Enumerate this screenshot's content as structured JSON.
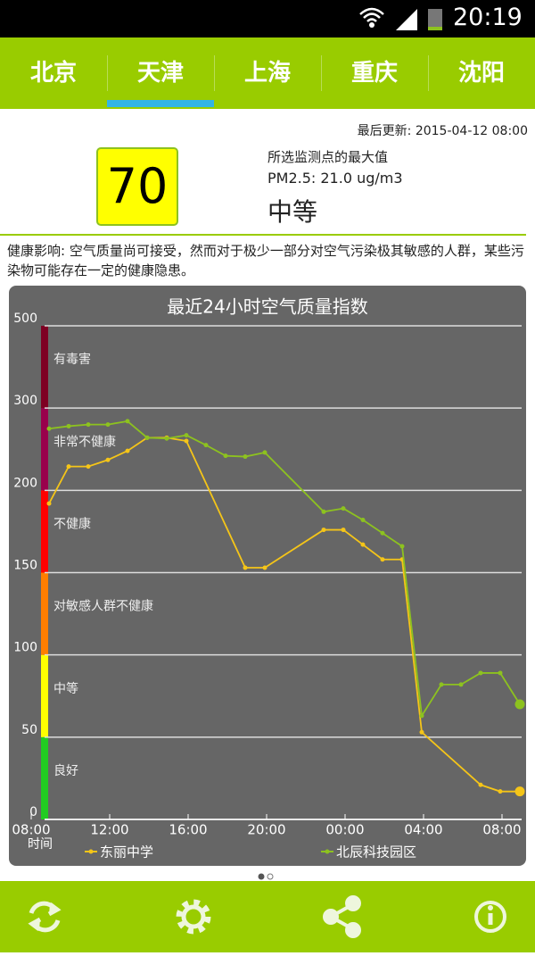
{
  "status_bar": {
    "time": "20:19"
  },
  "tabs": [
    "北京",
    "天津",
    "上海",
    "重庆",
    "沈阳"
  ],
  "selected_tab": 1,
  "updated": "最后更新: 2015-04-12 08:00",
  "aqi": {
    "value": 70,
    "note": "所选监测点的最大值",
    "pm25": "PM2.5: 21.0 ug/m3",
    "level": "中等"
  },
  "health": "健康影响: 空气质量尚可接受，然而对于极少一部分对空气污染极其敏感的人群，某些污染物可能存在一定的健康隐患。",
  "chart_data": {
    "type": "line",
    "title": "最近24小时空气质量指数",
    "x_label": "时间",
    "xlim": [
      0,
      25
    ],
    "xticks": [
      {
        "value": 0,
        "label": "08:00"
      },
      {
        "value": 4,
        "label": "12:00"
      },
      {
        "value": 8,
        "label": "16:00"
      },
      {
        "value": 12,
        "label": "20:00"
      },
      {
        "value": 16,
        "label": "00:00"
      },
      {
        "value": 20,
        "label": "04:00"
      },
      {
        "value": 24,
        "label": "08:00"
      }
    ],
    "ylim": [
      0,
      500
    ],
    "yticks": [
      0,
      50,
      100,
      150,
      200,
      300,
      500
    ],
    "grid": true,
    "bands": [
      {
        "label": "良好",
        "from": 0,
        "to": 50,
        "color": "#22cc22"
      },
      {
        "label": "中等",
        "from": 50,
        "to": 100,
        "color": "#ffff00"
      },
      {
        "label": "对敏感人群不健康",
        "from": 100,
        "to": 150,
        "color": "#ff7e00"
      },
      {
        "label": "不健康",
        "from": 150,
        "to": 200,
        "color": "#ff0000"
      },
      {
        "label": "非常不健康",
        "from": 200,
        "to": 300,
        "color": "#99004c"
      },
      {
        "label": "有毒害",
        "from": 300,
        "to": 500,
        "color": "#7e0023"
      }
    ],
    "series": [
      {
        "name": "东丽中学",
        "color": "#f5c518",
        "x": [
          1,
          2,
          3,
          4,
          5,
          6,
          7,
          8,
          11,
          12,
          15,
          16,
          17,
          18,
          19,
          20,
          23,
          24,
          25
        ],
        "values": [
          192,
          229,
          229,
          237,
          248,
          264,
          264,
          260,
          153,
          153,
          176,
          176,
          167,
          158,
          158,
          53,
          21,
          17,
          17
        ]
      },
      {
        "name": "北辰科技园区",
        "color": "#8dc21f",
        "x": [
          1,
          2,
          3,
          4,
          5,
          6,
          7,
          8,
          9,
          10,
          11,
          12,
          15,
          16,
          17,
          18,
          19,
          20,
          21,
          22,
          23,
          24,
          25
        ],
        "values": [
          275,
          278,
          280,
          280,
          284,
          264,
          263,
          267,
          255,
          242,
          241,
          246,
          187,
          189,
          182,
          174,
          166,
          63,
          82,
          82,
          89,
          89,
          70
        ]
      }
    ]
  }
}
